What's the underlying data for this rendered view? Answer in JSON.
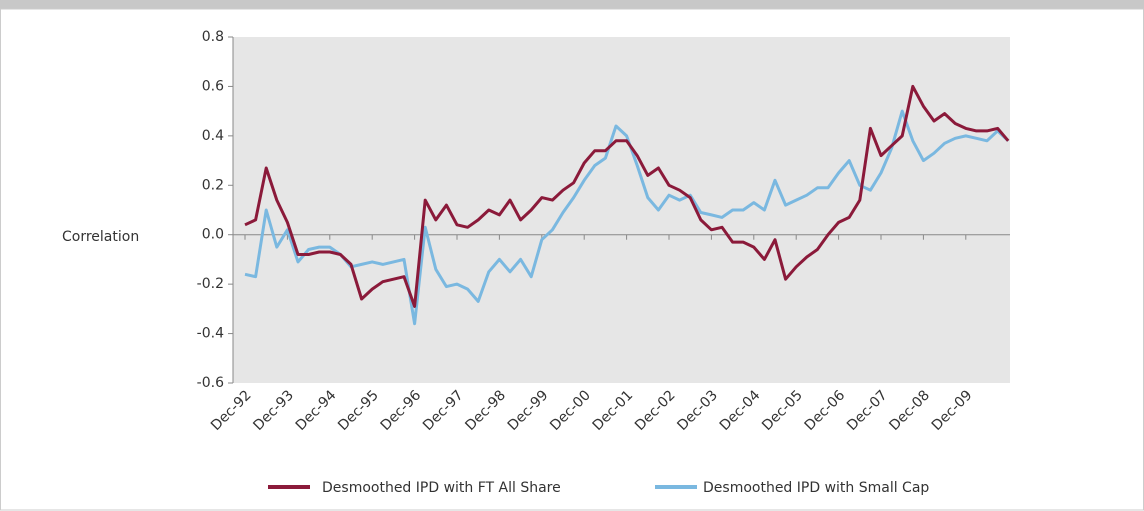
{
  "chart_data": {
    "type": "line",
    "y_label": "Correlation",
    "categories": [
      "Dec-92",
      null,
      null,
      null,
      "Dec-93",
      null,
      null,
      null,
      "Dec-94",
      null,
      null,
      null,
      "Dec-95",
      null,
      null,
      null,
      "Dec-96",
      null,
      null,
      null,
      "Dec-97",
      null,
      null,
      null,
      "Dec-98",
      null,
      null,
      null,
      "Dec-99",
      null,
      null,
      null,
      "Dec-00",
      null,
      null,
      null,
      "Dec-01",
      null,
      null,
      null,
      "Dec-02",
      null,
      null,
      null,
      "Dec-03",
      null,
      null,
      null,
      "Dec-04",
      null,
      null,
      null,
      "Dec-05",
      null,
      null,
      null,
      "Dec-06",
      null,
      null,
      null,
      "Dec-07",
      null,
      null,
      null,
      "Dec-08",
      null,
      null,
      null,
      "Dec-09",
      null,
      null,
      null,
      null
    ],
    "series": [
      {
        "name": "Desmoothed IPD with FT All Share",
        "color": "#8b1a3a",
        "values": [
          0.04,
          0.06,
          0.27,
          0.14,
          0.05,
          -0.08,
          -0.08,
          -0.07,
          -0.07,
          -0.08,
          -0.12,
          -0.26,
          -0.22,
          -0.19,
          -0.18,
          -0.17,
          -0.29,
          0.14,
          0.06,
          0.12,
          0.04,
          0.03,
          0.06,
          0.1,
          0.08,
          0.14,
          0.06,
          0.1,
          0.15,
          0.14,
          0.18,
          0.21,
          0.29,
          0.34,
          0.34,
          0.38,
          0.38,
          0.32,
          0.24,
          0.27,
          0.2,
          0.18,
          0.15,
          0.06,
          0.02,
          0.03,
          -0.03,
          -0.03,
          -0.05,
          -0.1,
          -0.02,
          -0.18,
          -0.13,
          -0.09,
          -0.06,
          0.0,
          0.05,
          0.07,
          0.14,
          0.43,
          0.32,
          0.36,
          0.4,
          0.6,
          0.52,
          0.46,
          0.49,
          0.45,
          0.43,
          0.42,
          0.42,
          0.43,
          0.38
        ]
      },
      {
        "name": "Desmoothed IPD with Small Cap",
        "color": "#7ab8e0",
        "values": [
          -0.16,
          -0.17,
          0.1,
          -0.05,
          0.02,
          -0.11,
          -0.06,
          -0.05,
          -0.05,
          -0.08,
          -0.13,
          -0.12,
          -0.11,
          -0.12,
          -0.11,
          -0.1,
          -0.36,
          0.03,
          -0.14,
          -0.21,
          -0.2,
          -0.22,
          -0.27,
          -0.15,
          -0.1,
          -0.15,
          -0.1,
          -0.17,
          -0.02,
          0.02,
          0.09,
          0.15,
          0.22,
          0.28,
          0.31,
          0.44,
          0.4,
          0.28,
          0.15,
          0.1,
          0.16,
          0.14,
          0.16,
          0.09,
          0.08,
          0.07,
          0.1,
          0.1,
          0.13,
          0.1,
          0.22,
          0.12,
          0.14,
          0.16,
          0.19,
          0.19,
          0.25,
          0.3,
          0.2,
          0.18,
          0.25,
          0.35,
          0.5,
          0.38,
          0.3,
          0.33,
          0.37,
          0.39,
          0.4,
          0.39,
          0.38,
          0.42,
          0.38
        ]
      }
    ],
    "ylim": [
      -0.6,
      0.8
    ],
    "yticks": [
      -0.6,
      -0.4,
      -0.2,
      {
        "value": 0,
        "label": "0.0"
      },
      0.2,
      0.4,
      0.6,
      0.8
    ]
  }
}
